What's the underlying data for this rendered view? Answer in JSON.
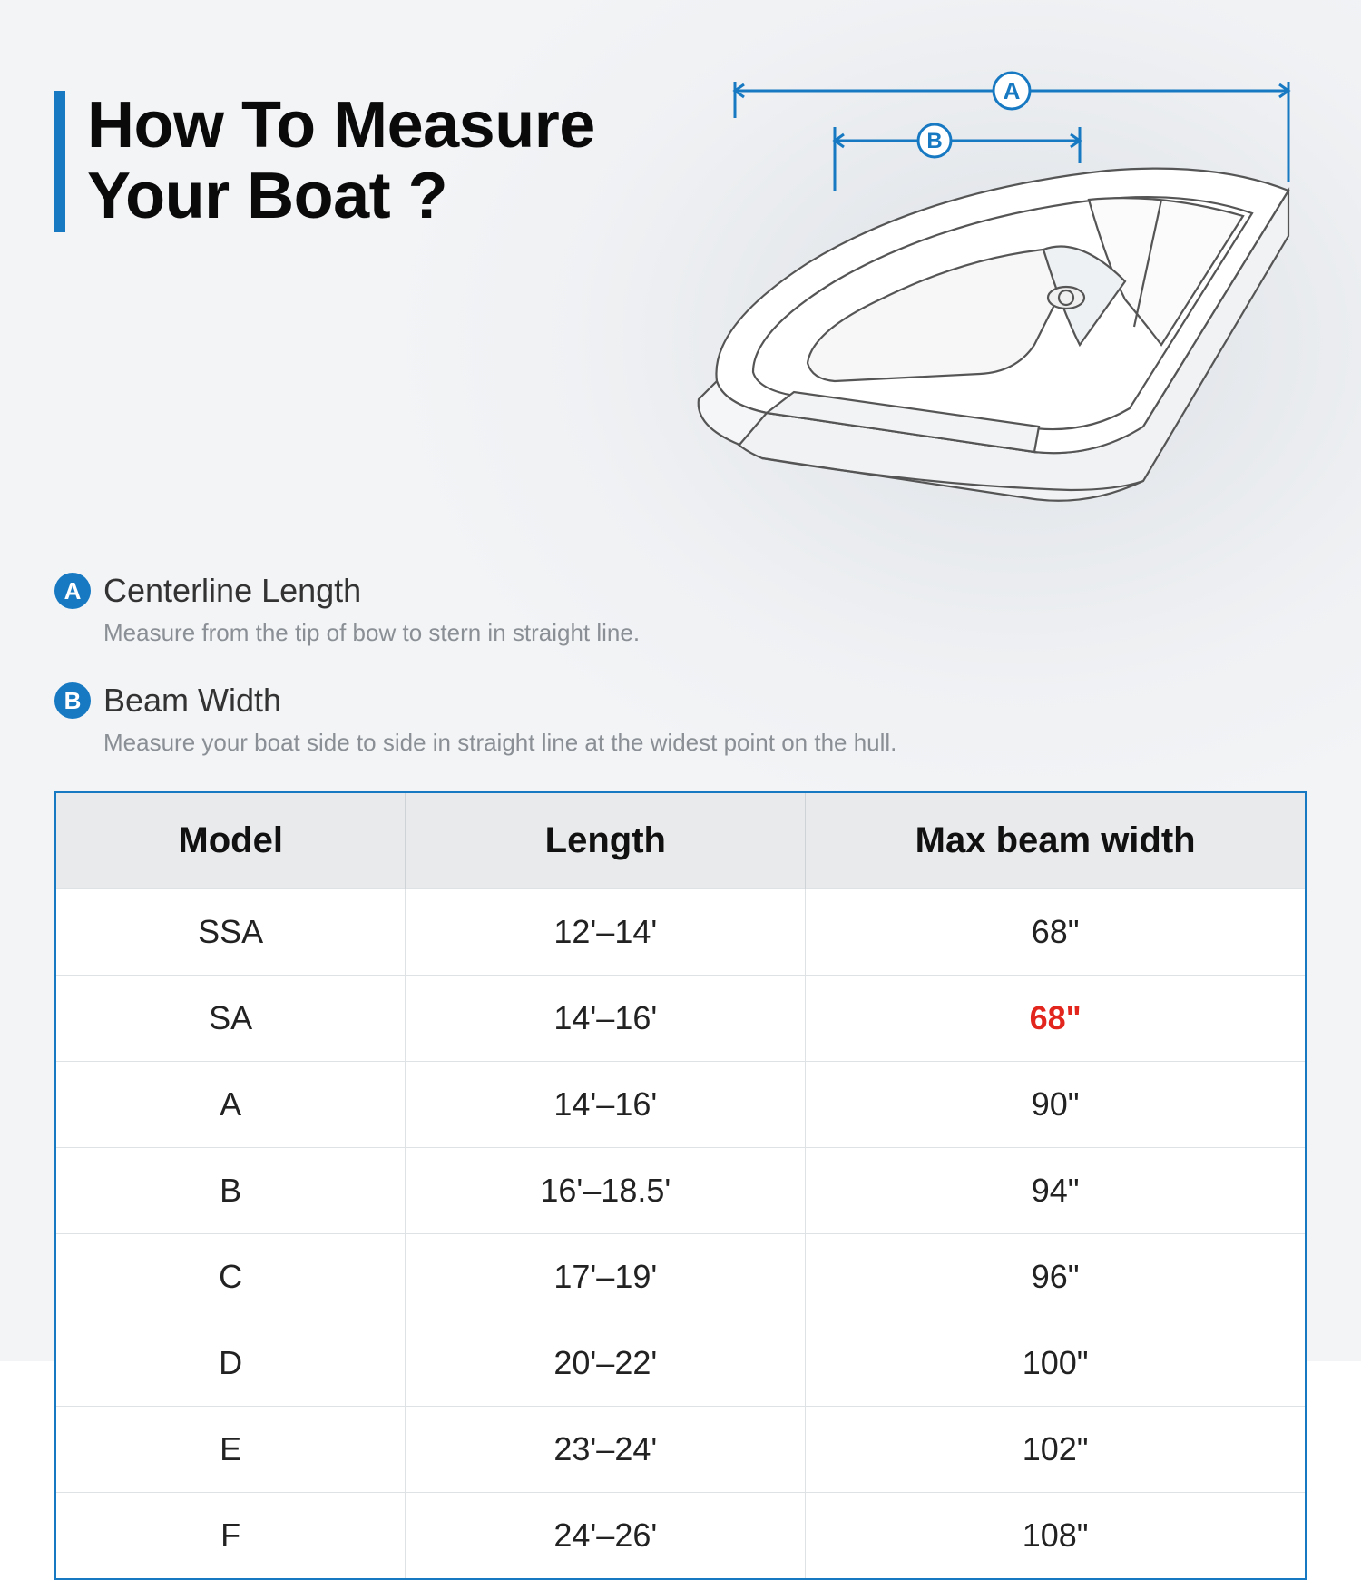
{
  "title_line1": "How To Measure",
  "title_line2": "Your Boat ?",
  "accent_color": "#1779c2",
  "highlight_color": "#e2261e",
  "diagram": {
    "label_a": "A",
    "label_b": "B",
    "line_color": "#1779c2",
    "boat_stroke": "#555"
  },
  "defs": [
    {
      "badge": "A",
      "title": "Centerline Length",
      "sub": "Measure from the tip of bow to stern in straight line."
    },
    {
      "badge": "B",
      "title": "Beam Width",
      "sub": "Measure your boat side to side in straight line at the widest point on the hull."
    }
  ],
  "table": {
    "headers": [
      "Model",
      "Length",
      "Max beam width"
    ],
    "rows": [
      {
        "model": "SSA",
        "length": "12'–14'",
        "beam": "68\"",
        "hl": false
      },
      {
        "model": "SA",
        "length": "14'–16'",
        "beam": "68\"",
        "hl": true
      },
      {
        "model": "A",
        "length": "14'–16'",
        "beam": "90\"",
        "hl": false
      },
      {
        "model": "B",
        "length": "16'–18.5'",
        "beam": "94\"",
        "hl": false
      },
      {
        "model": "C",
        "length": "17'–19'",
        "beam": "96\"",
        "hl": false
      },
      {
        "model": "D",
        "length": "20'–22'",
        "beam": "100\"",
        "hl": false
      },
      {
        "model": "E",
        "length": "23'–24'",
        "beam": "102\"",
        "hl": false
      },
      {
        "model": "F",
        "length": "24'–26'",
        "beam": "108\"",
        "hl": false
      }
    ]
  }
}
